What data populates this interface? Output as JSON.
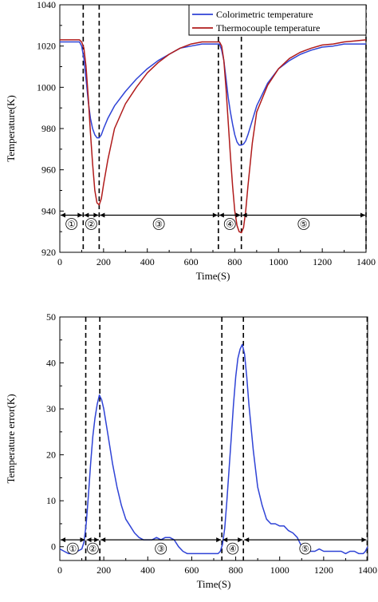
{
  "chart_data": [
    {
      "type": "line",
      "title": "",
      "xlabel": "Time(S)",
      "ylabel": "Temperature(K)",
      "xlim": [
        0,
        1400
      ],
      "ylim": [
        920,
        1040
      ],
      "xticks": [
        "0",
        "200",
        "400",
        "600",
        "800",
        "1000",
        "1200",
        "1400"
      ],
      "yticks": [
        "920",
        "940",
        "960",
        "980",
        "1000",
        "1020",
        "1040"
      ],
      "legend_position": "top-right",
      "series": [
        {
          "name": "Colorimetric temperature",
          "color": "#2f43d6",
          "x": [
            0,
            30,
            60,
            90,
            100,
            110,
            120,
            130,
            140,
            150,
            160,
            170,
            180,
            190,
            200,
            220,
            250,
            300,
            350,
            400,
            450,
            500,
            550,
            600,
            650,
            700,
            720,
            730,
            740,
            750,
            760,
            770,
            780,
            790,
            800,
            810,
            820,
            830,
            840,
            850,
            860,
            880,
            900,
            950,
            1000,
            1050,
            1100,
            1150,
            1200,
            1250,
            1300,
            1350,
            1400
          ],
          "y": [
            1022,
            1022,
            1022,
            1022,
            1020,
            1014,
            1004,
            993,
            985,
            980,
            977,
            975.5,
            975.5,
            977,
            980,
            985,
            991,
            998,
            1004,
            1009,
            1013,
            1016,
            1019,
            1020,
            1021,
            1021,
            1021,
            1021,
            1018,
            1013,
            1004,
            995,
            988,
            982,
            977,
            973.5,
            972,
            972,
            972.5,
            974,
            977,
            984,
            991,
            1002,
            1009,
            1013,
            1016,
            1018,
            1019.5,
            1020,
            1021,
            1021,
            1021
          ]
        },
        {
          "name": "Thermocouple temperature",
          "color": "#b01b1b",
          "x": [
            0,
            30,
            60,
            90,
            100,
            110,
            120,
            130,
            140,
            150,
            160,
            170,
            180,
            190,
            200,
            220,
            250,
            300,
            350,
            400,
            450,
            500,
            550,
            600,
            650,
            700,
            720,
            730,
            740,
            750,
            760,
            770,
            780,
            790,
            800,
            810,
            820,
            830,
            840,
            850,
            860,
            880,
            900,
            950,
            1000,
            1050,
            1100,
            1150,
            1200,
            1250,
            1300,
            1350,
            1400
          ],
          "y": [
            1023,
            1023,
            1023,
            1023,
            1022,
            1019,
            1010,
            995,
            978,
            963,
            950,
            944,
            943,
            946,
            953,
            965,
            980,
            992,
            1000,
            1007,
            1012,
            1016,
            1019,
            1021,
            1022,
            1022,
            1022,
            1022,
            1020,
            1013,
            999,
            983,
            967,
            952,
            940,
            933,
            930,
            929.5,
            932,
            940,
            952,
            973,
            988,
            1001,
            1009,
            1014,
            1017,
            1019,
            1020.5,
            1021,
            1022,
            1022.5,
            1023
          ]
        }
      ],
      "phase_markers": {
        "vertical_lines_x": [
          107,
          180,
          725,
          830,
          1400
        ],
        "arrow_y": 938,
        "segments": [
          {
            "label": "①",
            "x_start": 0,
            "x_end": 107
          },
          {
            "label": "②",
            "x_start": 107,
            "x_end": 180
          },
          {
            "label": "③",
            "x_start": 180,
            "x_end": 725
          },
          {
            "label": "④",
            "x_start": 725,
            "x_end": 830
          },
          {
            "label": "⑤",
            "x_start": 830,
            "x_end": 1400
          }
        ]
      }
    },
    {
      "type": "line",
      "title": "",
      "xlabel": "Time(S)",
      "ylabel": "Temperature error(K)",
      "xlim": [
        0,
        1400
      ],
      "ylim": [
        -3,
        50
      ],
      "xticks": [
        "0",
        "200",
        "400",
        "600",
        "800",
        "1000",
        "1200",
        "1400"
      ],
      "yticks": [
        "0",
        "10",
        "20",
        "30",
        "40",
        "50"
      ],
      "series": [
        {
          "name": "",
          "color": "#2f43d6",
          "x": [
            0,
            20,
            40,
            60,
            80,
            100,
            110,
            120,
            130,
            140,
            150,
            160,
            170,
            180,
            190,
            200,
            210,
            220,
            240,
            260,
            280,
            300,
            320,
            340,
            360,
            380,
            400,
            420,
            440,
            460,
            480,
            500,
            520,
            540,
            560,
            580,
            600,
            620,
            640,
            660,
            680,
            700,
            720,
            730,
            740,
            750,
            760,
            770,
            780,
            790,
            800,
            810,
            820,
            830,
            840,
            850,
            860,
            880,
            900,
            920,
            940,
            960,
            980,
            1000,
            1020,
            1040,
            1060,
            1080,
            1100,
            1120,
            1140,
            1160,
            1180,
            1200,
            1220,
            1240,
            1260,
            1280,
            1300,
            1320,
            1340,
            1360,
            1380,
            1390,
            1400
          ],
          "y": [
            -0.5,
            -1,
            -1.5,
            -1.5,
            -1,
            -0.5,
            1,
            5,
            11,
            18,
            24,
            28,
            31,
            33,
            32,
            30,
            27,
            24,
            18,
            13,
            9,
            6,
            4.5,
            3,
            2,
            1.5,
            1.5,
            1.5,
            2,
            1.5,
            2,
            2,
            1.5,
            0,
            -1,
            -1.5,
            -1.5,
            -1.5,
            -1.5,
            -1.5,
            -1.5,
            -1.5,
            -1.5,
            -1,
            0.5,
            4,
            10,
            17,
            24,
            31,
            37,
            41,
            43,
            44,
            42,
            37,
            31,
            21,
            13,
            9,
            6,
            5,
            5,
            4.5,
            4.5,
            3.5,
            3,
            2,
            0,
            -1,
            -1,
            -1,
            -0.5,
            -1,
            -1,
            -1,
            -1,
            -1,
            -1.5,
            -1,
            -1,
            -1.5,
            -1.5,
            -1,
            0
          ]
        }
      ],
      "phase_markers": {
        "vertical_lines_x": [
          118,
          182,
          737,
          835,
          1398
        ],
        "arrow_y": 1.5,
        "segments": [
          {
            "label": "①",
            "x_start": 0,
            "x_end": 118
          },
          {
            "label": "②",
            "x_start": 118,
            "x_end": 182
          },
          {
            "label": "③",
            "x_start": 182,
            "x_end": 737
          },
          {
            "label": "④",
            "x_start": 737,
            "x_end": 835
          },
          {
            "label": "⑤",
            "x_start": 835,
            "x_end": 1398
          }
        ]
      }
    }
  ]
}
